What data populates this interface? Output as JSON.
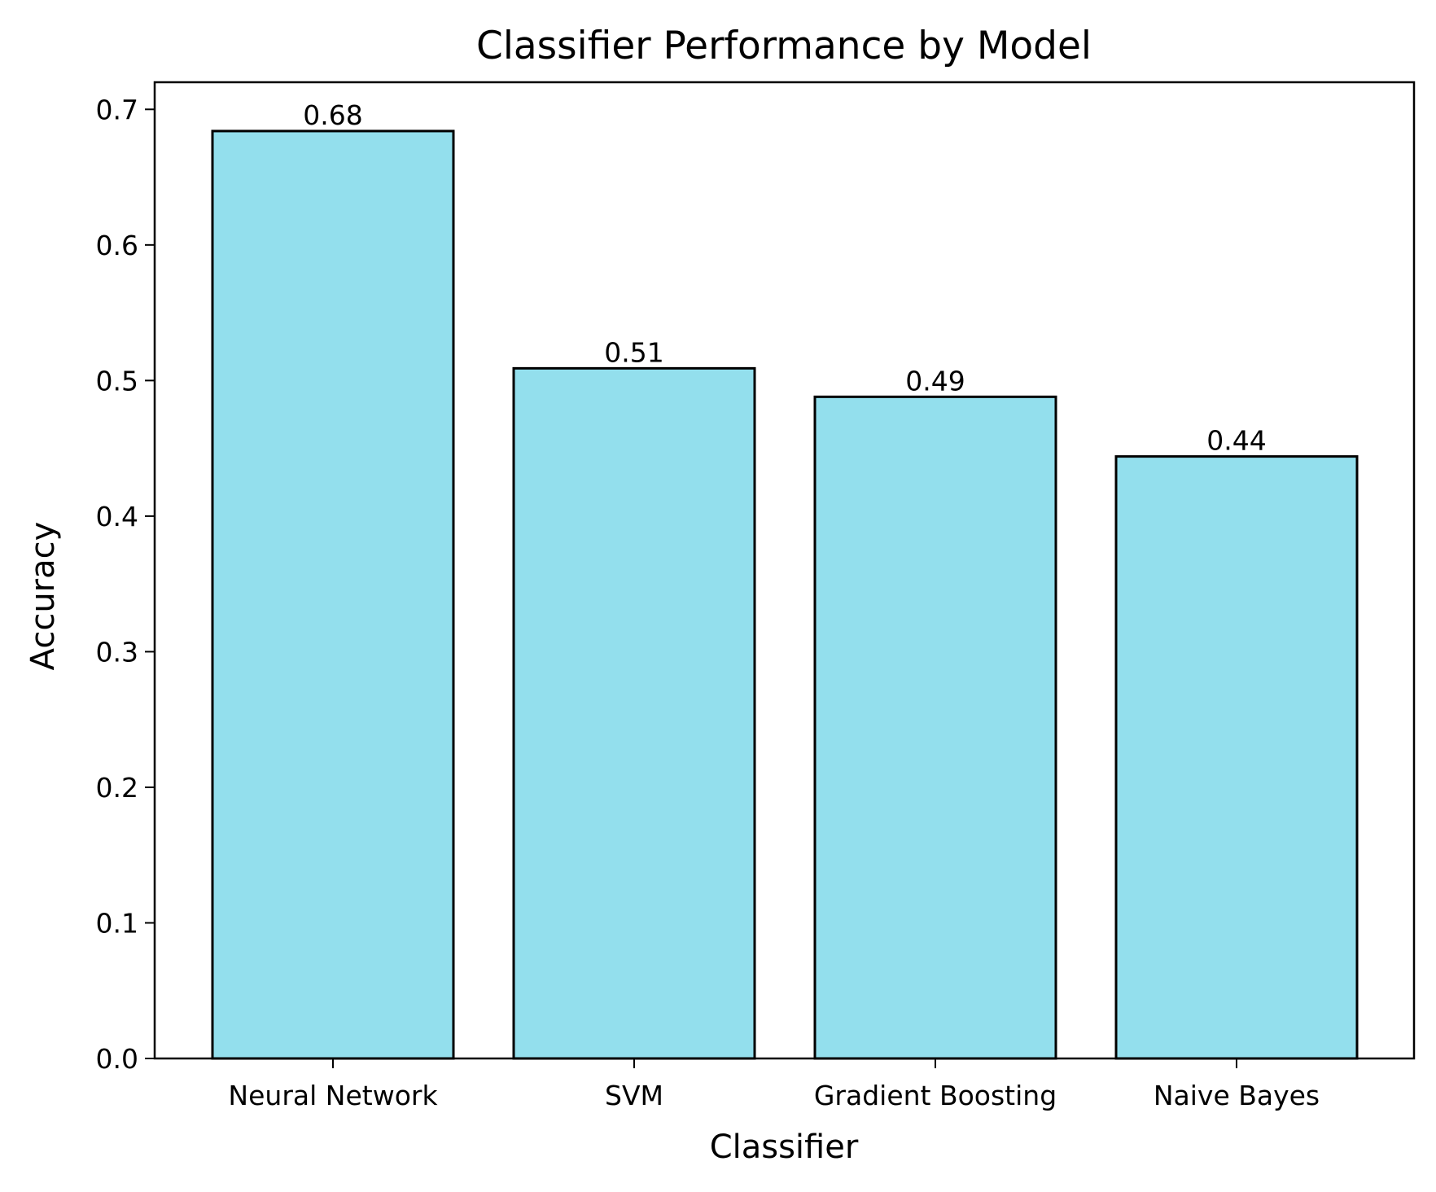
{
  "chart_data": {
    "type": "bar",
    "title": "Classifier Performance by Model",
    "xlabel": "Classifier",
    "ylabel": "Accuracy",
    "categories": [
      "Neural Network",
      "SVM",
      "Gradient Boosting",
      "Naive Bayes"
    ],
    "values": [
      0.684,
      0.509,
      0.488,
      0.444
    ],
    "value_labels": [
      "0.68",
      "0.51",
      "0.49",
      "0.44"
    ],
    "ylim": [
      0,
      0.72
    ],
    "yticks": [
      0.0,
      0.1,
      0.2,
      0.3,
      0.4,
      0.5,
      0.6,
      0.7
    ],
    "ytick_labels": [
      "0.0",
      "0.1",
      "0.2",
      "0.3",
      "0.4",
      "0.5",
      "0.6",
      "0.7"
    ],
    "grid": false,
    "legend": "none",
    "colors": {
      "bar_fill": "#93dfed",
      "bar_edge": "#000000",
      "axis": "#000000"
    }
  }
}
